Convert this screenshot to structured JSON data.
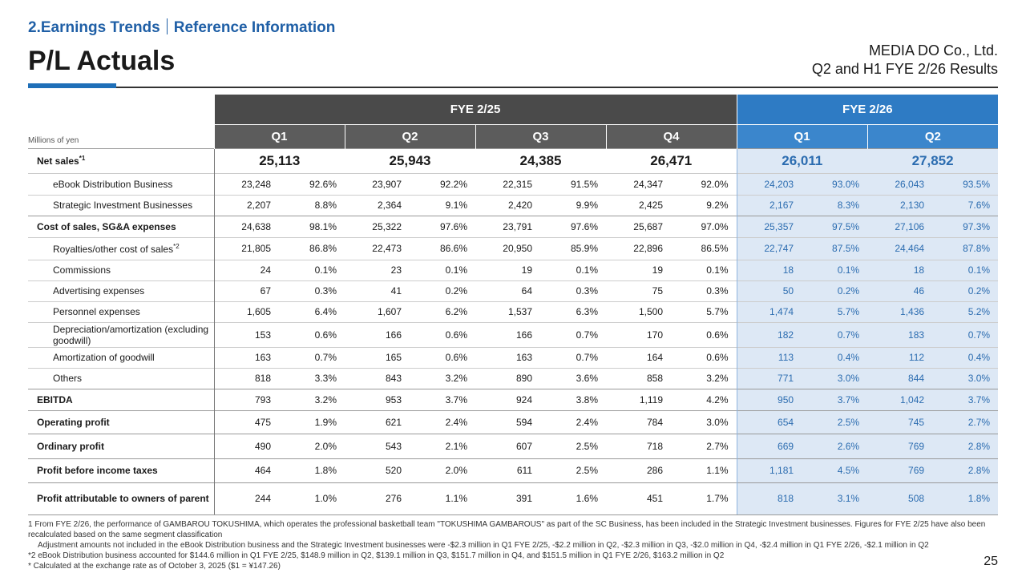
{
  "header": {
    "section": "2.Earnings Trends",
    "subsection": "Reference Information",
    "title": "P/L Actuals",
    "company": "MEDIA DO Co., Ltd.",
    "report": "Q2 and H1 FYE 2/26 Results"
  },
  "table": {
    "unit": "Millions of yen",
    "years": [
      {
        "label": "FYE 2/25",
        "quarters": [
          "Q1",
          "Q2",
          "Q3",
          "Q4"
        ]
      },
      {
        "label": "FYE 2/26",
        "quarters": [
          "Q1",
          "Q2"
        ]
      }
    ],
    "rows": [
      {
        "label": "Net sales",
        "note": "*1",
        "values": [
          "25,113",
          "25,943",
          "24,385",
          "26,471",
          "26,011",
          "27,852"
        ],
        "rows": [
          {
            "label": "eBook Distribution Business",
            "values": [
              "23,248",
              "92.6%",
              "23,907",
              "92.2%",
              "22,315",
              "91.5%",
              "24,347",
              "92.0%",
              "24,203",
              "93.0%",
              "26,043",
              "93.5%"
            ]
          },
          {
            "label": "Strategic Investment Businesses",
            "values": [
              "2,207",
              "8.8%",
              "2,364",
              "9.1%",
              "2,420",
              "9.9%",
              "2,425",
              "9.2%",
              "2,167",
              "8.3%",
              "2,130",
              "7.6%"
            ]
          }
        ]
      },
      {
        "label": "Cost of sales, SG&A expenses",
        "values": [
          "24,638",
          "98.1%",
          "25,322",
          "97.6%",
          "23,791",
          "97.6%",
          "25,687",
          "97.0%",
          "25,357",
          "97.5%",
          "27,106",
          "97.3%"
        ],
        "rows": [
          {
            "label": "Royalties/other cost of sales",
            "note": "*2",
            "values": [
              "21,805",
              "86.8%",
              "22,473",
              "86.6%",
              "20,950",
              "85.9%",
              "22,896",
              "86.5%",
              "22,747",
              "87.5%",
              "24,464",
              "87.8%"
            ]
          },
          {
            "label": "Commissions",
            "values": [
              "24",
              "0.1%",
              "23",
              "0.1%",
              "19",
              "0.1%",
              "19",
              "0.1%",
              "18",
              "0.1%",
              "18",
              "0.1%"
            ]
          },
          {
            "label": "Advertising expenses",
            "values": [
              "67",
              "0.3%",
              "41",
              "0.2%",
              "64",
              "0.3%",
              "75",
              "0.3%",
              "50",
              "0.2%",
              "46",
              "0.2%"
            ]
          },
          {
            "label": "Personnel expenses",
            "values": [
              "1,605",
              "6.4%",
              "1,607",
              "6.2%",
              "1,537",
              "6.3%",
              "1,500",
              "5.7%",
              "1,474",
              "5.7%",
              "1,436",
              "5.2%"
            ]
          },
          {
            "label": "Depreciation/amortization (excluding goodwill)",
            "values": [
              "153",
              "0.6%",
              "166",
              "0.6%",
              "166",
              "0.7%",
              "170",
              "0.6%",
              "182",
              "0.7%",
              "183",
              "0.7%"
            ]
          },
          {
            "label": "Amortization of goodwill",
            "values": [
              "163",
              "0.7%",
              "165",
              "0.6%",
              "163",
              "0.7%",
              "164",
              "0.6%",
              "113",
              "0.4%",
              "112",
              "0.4%"
            ]
          },
          {
            "label": "Others",
            "values": [
              "818",
              "3.3%",
              "843",
              "3.2%",
              "890",
              "3.6%",
              "858",
              "3.2%",
              "771",
              "3.0%",
              "844",
              "3.0%"
            ]
          }
        ]
      },
      {
        "label": "EBITDA",
        "values": [
          "793",
          "3.2%",
          "953",
          "3.7%",
          "924",
          "3.8%",
          "1,119",
          "4.2%",
          "950",
          "3.7%",
          "1,042",
          "3.7%"
        ]
      },
      {
        "label": "Operating profit",
        "values": [
          "475",
          "1.9%",
          "621",
          "2.4%",
          "594",
          "2.4%",
          "784",
          "3.0%",
          "654",
          "2.5%",
          "745",
          "2.7%"
        ]
      },
      {
        "label": "Ordinary profit",
        "values": [
          "490",
          "2.0%",
          "543",
          "2.1%",
          "607",
          "2.5%",
          "718",
          "2.7%",
          "669",
          "2.6%",
          "769",
          "2.8%"
        ]
      },
      {
        "label": "Profit before income taxes",
        "values": [
          "464",
          "1.8%",
          "520",
          "2.0%",
          "611",
          "2.5%",
          "286",
          "1.1%",
          "1,181",
          "4.5%",
          "769",
          "2.8%"
        ]
      },
      {
        "label": "Profit attributable to owners of parent",
        "values": [
          "244",
          "1.0%",
          "276",
          "1.1%",
          "391",
          "1.6%",
          "451",
          "1.7%",
          "818",
          "3.1%",
          "508",
          "1.8%"
        ]
      }
    ]
  },
  "footnotes": [
    "1 From FYE 2/26, the performance of GAMBAROU TOKUSHIMA, which operates the professional basketball team \"TOKUSHIMA GAMBAROUS\" as part of the SC Business, has been included in the Strategic Investment businesses. Figures for FYE 2/25 have also been recalculated based on the same segment classification",
    "Adjustment amounts not included in the eBook Distribution business and the Strategic Investment businesses were -$2.3 million in Q1 FYE 2/25, -$2.2 million in Q2, -$2.3 million in Q3, -$2.0 million in Q4, -$2.4 million in Q1 FYE 2/26, -$2.1 million in Q2",
    "*2 eBook Distribution business accounted for $144.6 million in Q1 FYE 2/25, $148.9 million in Q2, $139.1 million in Q3, $151.7 million in Q4, and $151.5 million in Q1 FYE 2/26, $163.2 million in Q2",
    "*  Calculated at the exchange rate as of October 3, 2025 ($1 = ¥147.26)"
  ],
  "page_number": "25"
}
